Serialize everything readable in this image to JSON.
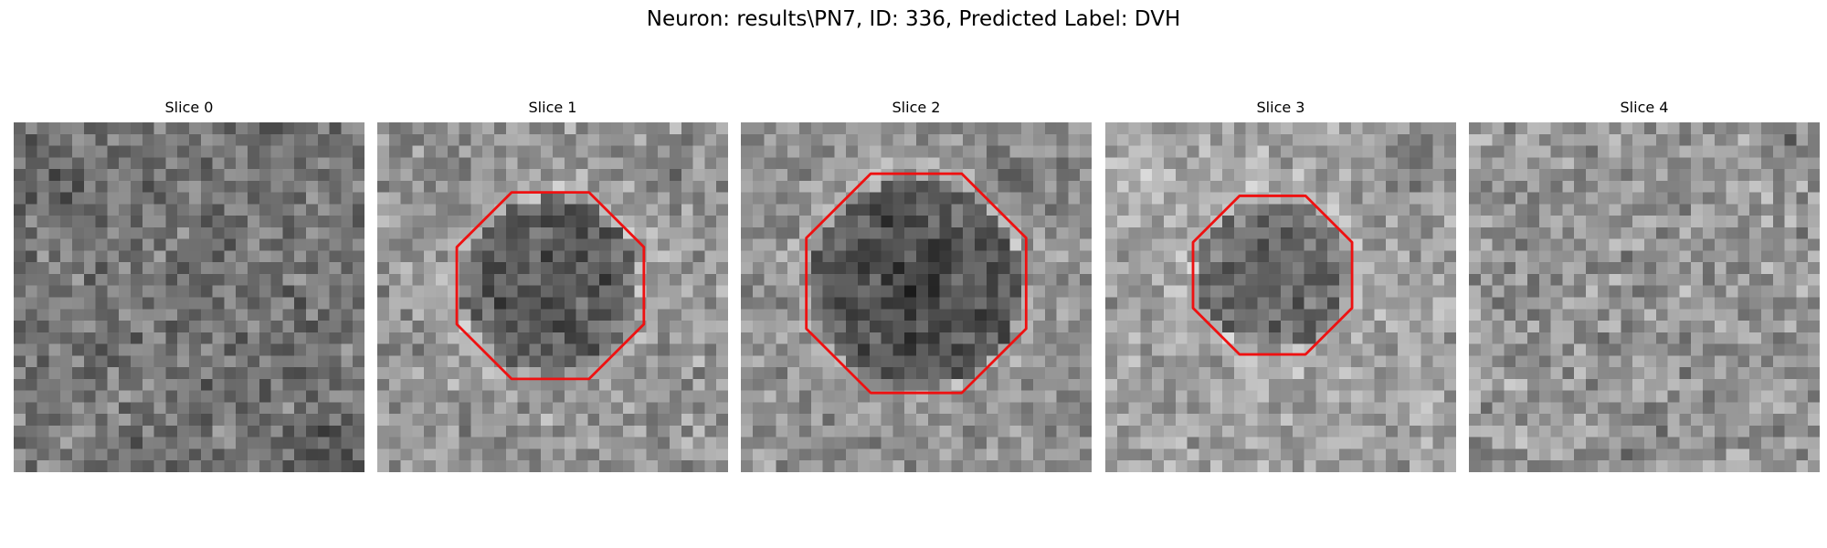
{
  "figure": {
    "title": "Neuron: results\\PN7, ID: 336, Predicted Label: DVH"
  },
  "style": {
    "contour_color": "#ee1111",
    "background": "#ffffff"
  },
  "slices": [
    {
      "title": "Slice 0",
      "seed": 101,
      "has_contour": false,
      "texture": "mottled mid-gray noise, darker patch upper-left, bright speck lower-left, dark band bottom-right"
    },
    {
      "title": "Slice 1",
      "seed": 202,
      "has_contour": true,
      "texture": "dark roughly circular cell body in center surrounded by lighter mottled tissue"
    },
    {
      "title": "Slice 2",
      "seed": 303,
      "has_contour": true,
      "texture": "large dark circular cell body filling center, lighter ring around it"
    },
    {
      "title": "Slice 3",
      "seed": 404,
      "has_contour": true,
      "texture": "smaller dark circular region slightly above center, bright tissue around"
    },
    {
      "title": "Slice 4",
      "seed": 505,
      "has_contour": false,
      "texture": "fine light-gray noise, darker clusters lower-left and bottom"
    }
  ]
}
